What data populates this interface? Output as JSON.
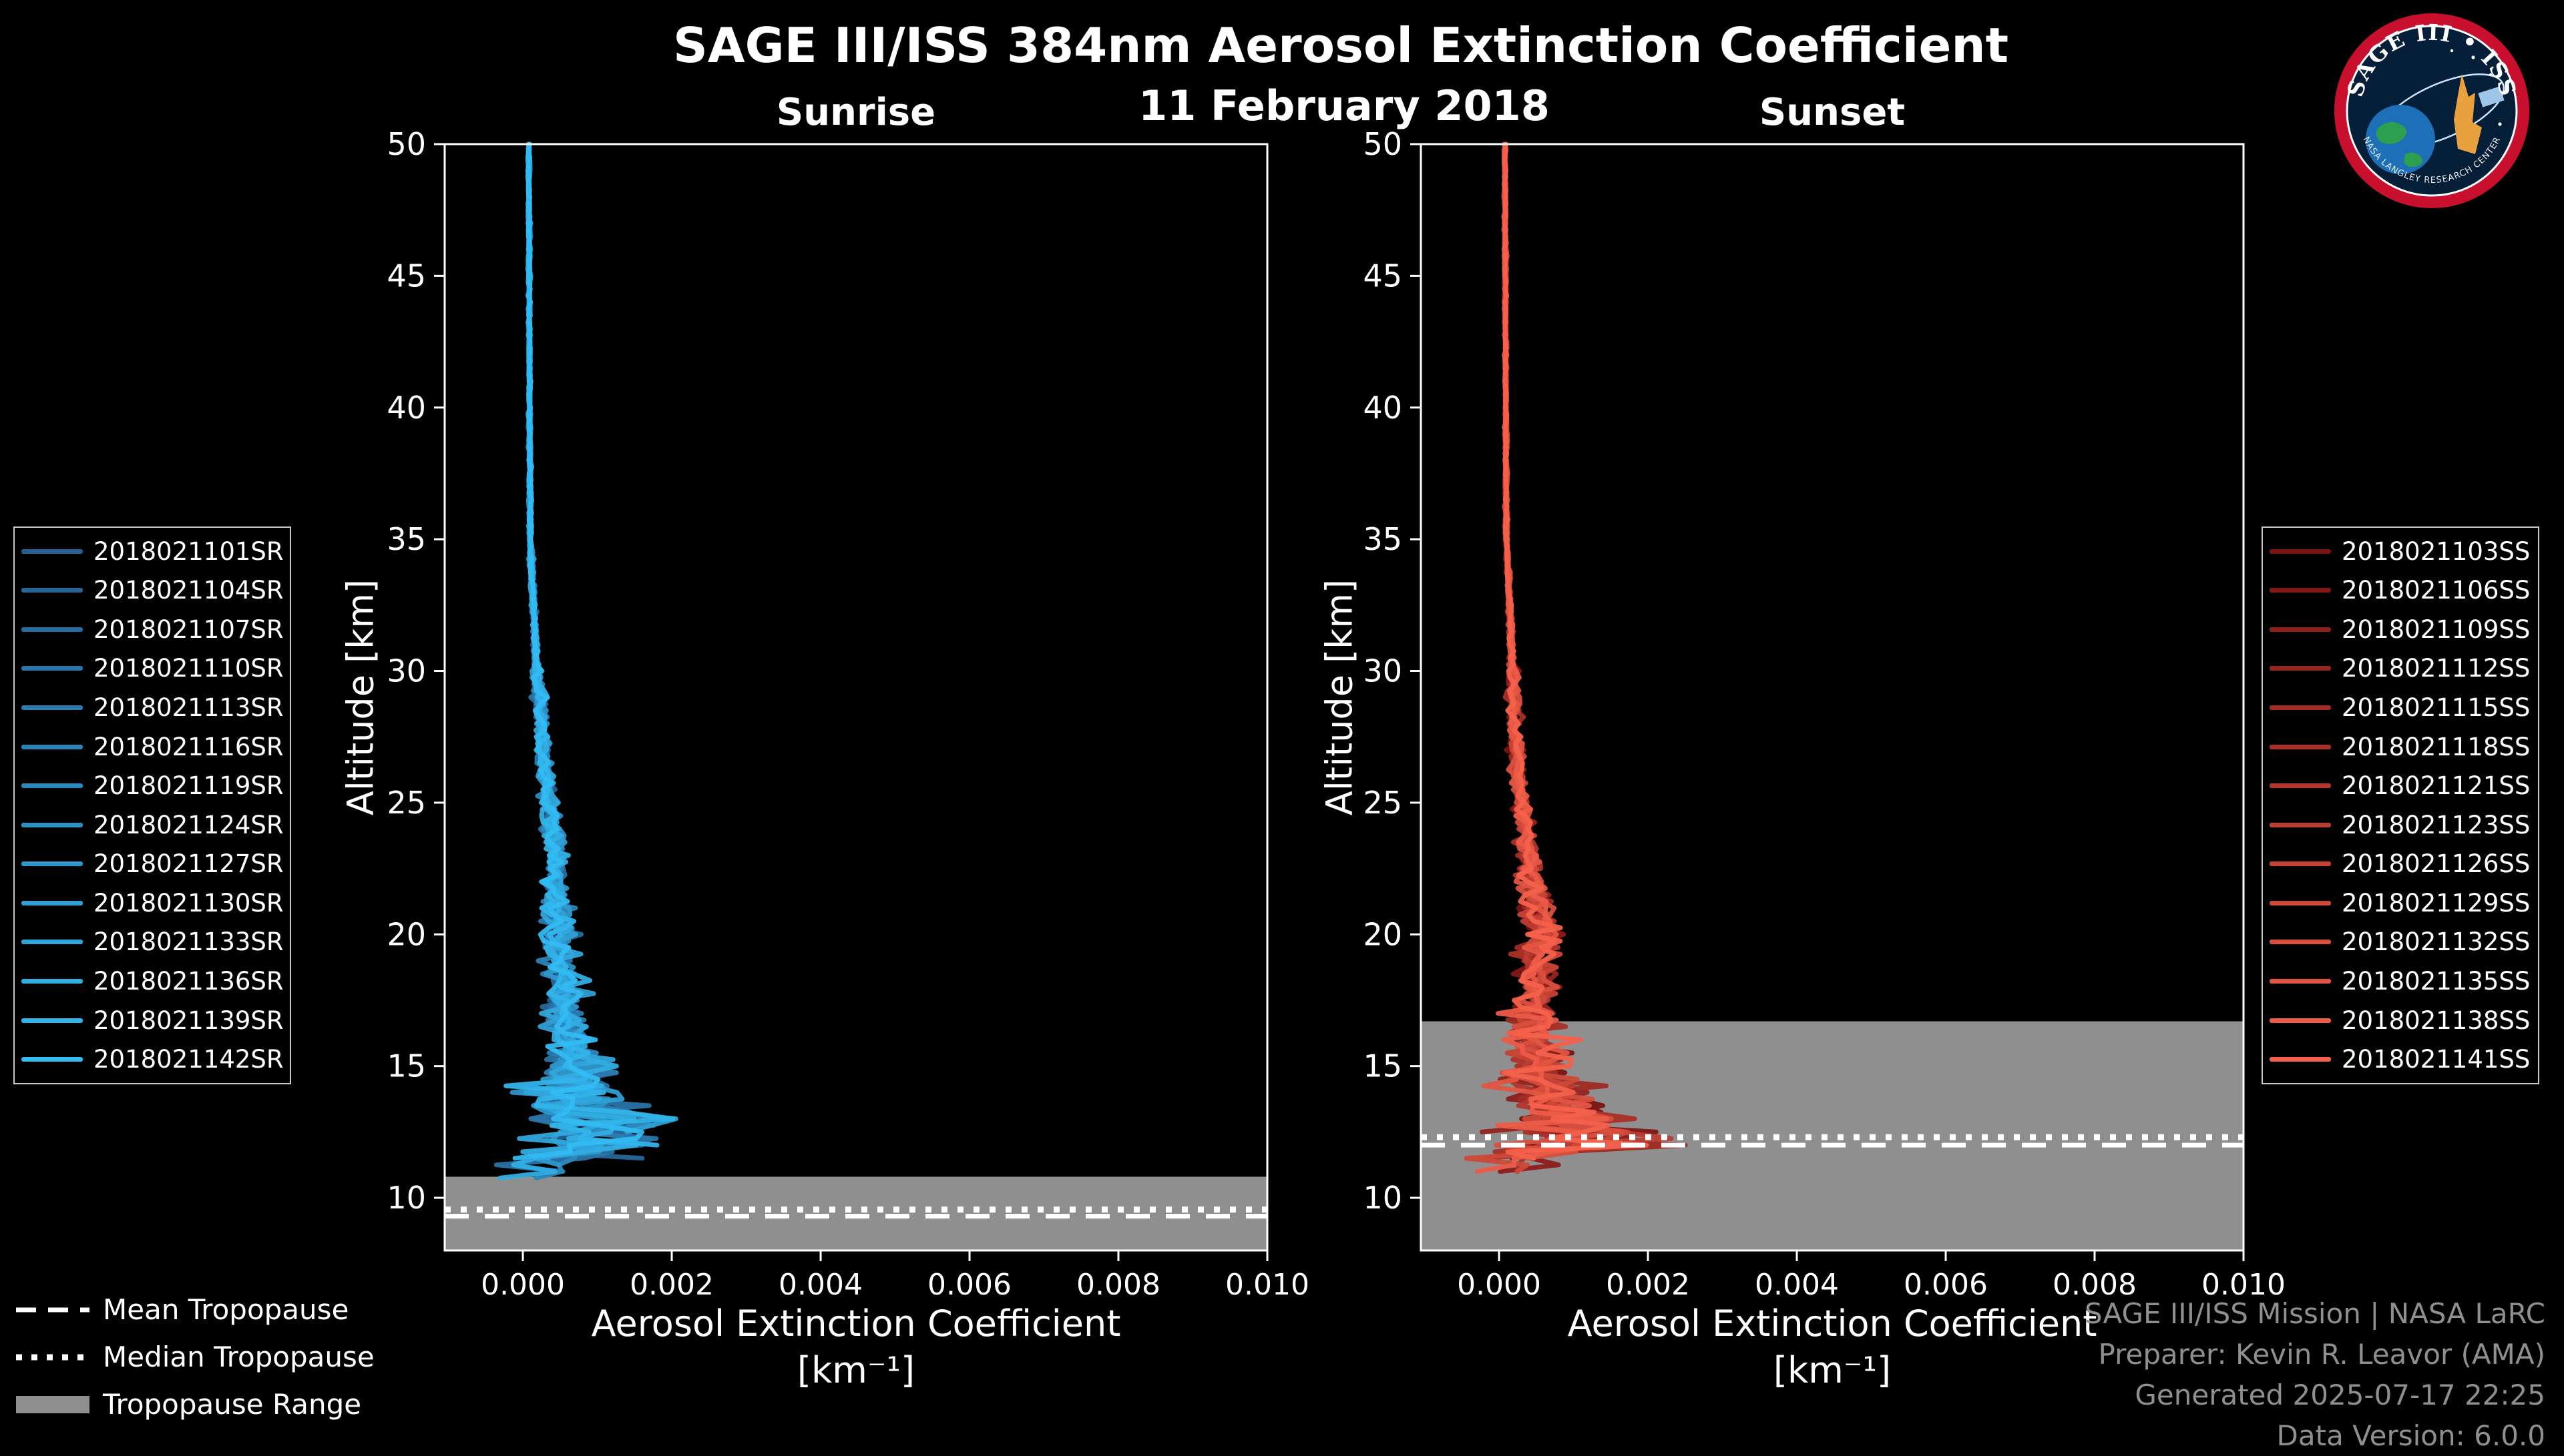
{
  "header": {
    "title": "SAGE III/ISS 384nm Aerosol Extinction Coefficient",
    "date": "11 February 2018"
  },
  "axes": {
    "xlabel_line1": "Aerosol Extinction Coefficient",
    "xlabel_line2": "[km⁻¹]",
    "ylabel": "Altitude [km]"
  },
  "tropopause_legend": {
    "mean": "Mean Tropopause",
    "median": "Median Tropopause",
    "range": "Tropopause Range"
  },
  "credits": {
    "line1": "SAGE III/ISS Mission | NASA LaRC",
    "line2": "Preparer: Kevin R. Leavor (AMA)",
    "line3": "Generated 2025-07-17 22:25",
    "line4": "Data Version: 6.0.0"
  },
  "logo": {
    "title": "SAGE III • ISS",
    "subtitle": "NASA LANGLEY RESEARCH CENTER"
  },
  "colors": {
    "background": "#000000",
    "axis": "#ffffff",
    "tropopause_band": "#8f8f8f",
    "tropopause_lines": "#ffffff",
    "credits_text": "#8f8f8f",
    "sunrise_dark": "#265f92",
    "sunrise_bright": "#33bbf2",
    "sunset_dark": "#7a1212",
    "sunset_bright": "#f4614b",
    "logo_ring": "#c8102e",
    "logo_navy": "#061f38"
  },
  "chart_data": [
    {
      "type": "line",
      "panel": "sunrise",
      "title": "Sunrise",
      "xlabel": "Aerosol Extinction Coefficient [km⁻¹]",
      "ylabel": "Altitude [km]",
      "xlim": [
        -0.00105,
        0.01
      ],
      "ylim": [
        8,
        50
      ],
      "xticks": [
        0.0,
        0.002,
        0.004,
        0.006,
        0.008,
        0.01
      ],
      "yticks": [
        10,
        15,
        20,
        25,
        30,
        35,
        40,
        45,
        50
      ],
      "legend_position": "outside-left",
      "grid": false,
      "color_range": [
        "#265f92",
        "#33bbf2"
      ],
      "series": [
        {
          "id": "2018021101SR",
          "bottom_km": 12.0
        },
        {
          "id": "2018021104SR",
          "bottom_km": 11.5
        },
        {
          "id": "2018021107SR",
          "bottom_km": 12.4
        },
        {
          "id": "2018021110SR",
          "bottom_km": 11.0
        },
        {
          "id": "2018021113SR",
          "bottom_km": 12.0
        },
        {
          "id": "2018021116SR",
          "bottom_km": 11.6
        },
        {
          "id": "2018021119SR",
          "bottom_km": 10.6
        },
        {
          "id": "2018021124SR",
          "bottom_km": 12.1
        },
        {
          "id": "2018021127SR",
          "bottom_km": 11.1
        },
        {
          "id": "2018021130SR",
          "bottom_km": 12.5
        },
        {
          "id": "2018021133SR",
          "bottom_km": 11.4
        },
        {
          "id": "2018021136SR",
          "bottom_km": 10.6
        },
        {
          "id": "2018021139SR",
          "bottom_km": 12.0
        },
        {
          "id": "2018021142SR",
          "bottom_km": 11.5
        }
      ],
      "profile_breakpoints_alt_mean_spread": [
        [
          50,
          8e-05,
          2e-05
        ],
        [
          40,
          9e-05,
          2e-05
        ],
        [
          35,
          0.0001,
          3e-05
        ],
        [
          30,
          0.00018,
          5e-05
        ],
        [
          28,
          0.00025,
          6e-05
        ],
        [
          26,
          0.0003,
          8e-05
        ],
        [
          24,
          0.0004,
          0.0001
        ],
        [
          22,
          0.00045,
          0.00012
        ],
        [
          20,
          0.0005,
          0.00015
        ],
        [
          18,
          0.00055,
          0.00018
        ],
        [
          16,
          0.0006,
          0.0002
        ],
        [
          15,
          0.0007,
          0.0003
        ],
        [
          14,
          0.0006,
          0.0004
        ],
        [
          13,
          0.0008,
          0.0005
        ],
        [
          12.5,
          0.001,
          0.0006
        ],
        [
          12,
          0.0008,
          0.0007
        ],
        [
          11.5,
          0.0004,
          0.0006
        ],
        [
          11,
          0.0002,
          0.0004
        ],
        [
          10.5,
          0.0001,
          0.0003
        ],
        [
          10,
          0.0,
          0.0002
        ]
      ],
      "tropopause": {
        "mean_km": 9.3,
        "median_km": 9.55,
        "range_top_km": 10.8,
        "range_bottom_km": 8.0
      }
    },
    {
      "type": "line",
      "panel": "sunset",
      "title": "Sunset",
      "xlabel": "Aerosol Extinction Coefficient [km⁻¹]",
      "ylabel": "Altitude [km]",
      "xlim": [
        -0.00105,
        0.01
      ],
      "ylim": [
        8,
        50
      ],
      "xticks": [
        0.0,
        0.002,
        0.004,
        0.006,
        0.008,
        0.01
      ],
      "yticks": [
        10,
        15,
        20,
        25,
        30,
        35,
        40,
        45,
        50
      ],
      "legend_position": "outside-right",
      "grid": false,
      "color_range": [
        "#7a1212",
        "#f4614b"
      ],
      "series": [
        {
          "id": "2018021103SS",
          "bottom_km": 11.5
        },
        {
          "id": "2018021106SS",
          "bottom_km": 12.0
        },
        {
          "id": "2018021109SS",
          "bottom_km": 11.0
        },
        {
          "id": "2018021112SS",
          "bottom_km": 12.5
        },
        {
          "id": "2018021115SS",
          "bottom_km": 11.5
        },
        {
          "id": "2018021118SS",
          "bottom_km": 11.0
        },
        {
          "id": "2018021121SS",
          "bottom_km": 12.0
        },
        {
          "id": "2018021123SS",
          "bottom_km": 11.6
        },
        {
          "id": "2018021126SS",
          "bottom_km": 12.6
        },
        {
          "id": "2018021129SS",
          "bottom_km": 11.0
        },
        {
          "id": "2018021132SS",
          "bottom_km": 11.5
        },
        {
          "id": "2018021135SS",
          "bottom_km": 12.0
        },
        {
          "id": "2018021138SS",
          "bottom_km": 11.0
        },
        {
          "id": "2018021141SS",
          "bottom_km": 11.4
        }
      ],
      "profile_breakpoints_alt_mean_spread": [
        [
          50,
          8e-05,
          2e-05
        ],
        [
          40,
          9e-05,
          2e-05
        ],
        [
          35,
          0.0001,
          3e-05
        ],
        [
          30,
          0.00018,
          5e-05
        ],
        [
          28,
          0.0002,
          6e-05
        ],
        [
          25,
          0.0003,
          8e-05
        ],
        [
          23,
          0.0004,
          0.0001
        ],
        [
          21,
          0.0005,
          0.00015
        ],
        [
          20,
          0.0006,
          0.0002
        ],
        [
          19,
          0.0005,
          0.0002
        ],
        [
          18,
          0.00045,
          0.0002
        ],
        [
          16,
          0.0005,
          0.00025
        ],
        [
          15,
          0.0005,
          0.0003
        ],
        [
          14,
          0.0006,
          0.0004
        ],
        [
          13.5,
          0.0007,
          0.00045
        ],
        [
          13,
          0.0009,
          0.0005
        ],
        [
          12.5,
          0.001,
          0.0006
        ],
        [
          12,
          0.0007,
          0.0006
        ],
        [
          11.5,
          0.0004,
          0.0005
        ],
        [
          11,
          0.0002,
          0.0004
        ]
      ],
      "tropopause": {
        "mean_km": 12.0,
        "median_km": 12.3,
        "range_top_km": 16.7,
        "range_bottom_km": 8.0
      }
    }
  ]
}
